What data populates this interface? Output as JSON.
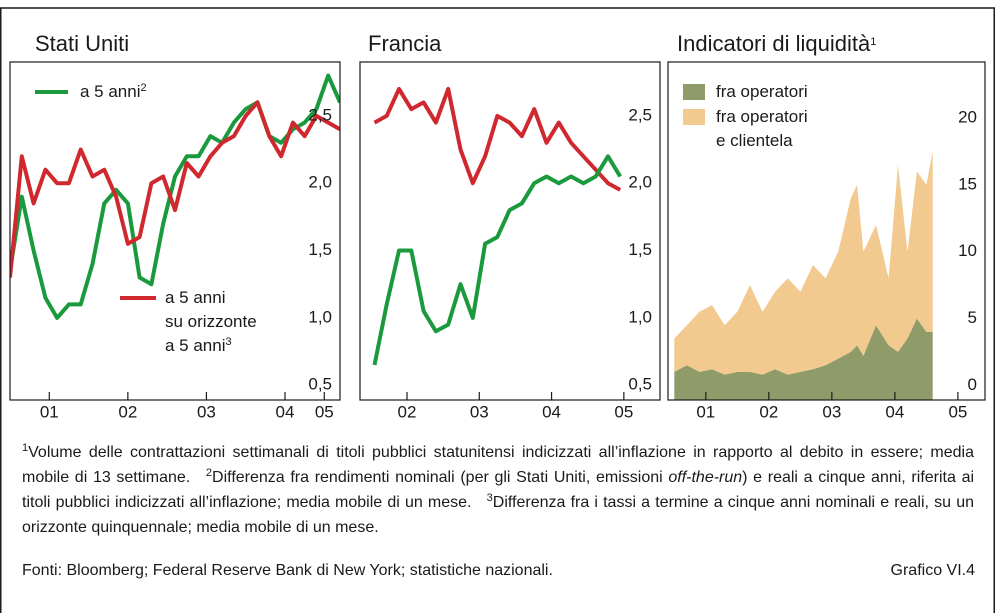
{
  "chart_data": [
    {
      "type": "line",
      "title": "Stati Uniti",
      "x": [
        2001.0,
        2001.15,
        2001.3,
        2001.45,
        2001.6,
        2001.75,
        2001.9,
        2002.05,
        2002.2,
        2002.35,
        2002.5,
        2002.65,
        2002.8,
        2002.95,
        2003.1,
        2003.25,
        2003.4,
        2003.55,
        2003.7,
        2003.85,
        2004.0,
        2004.15,
        2004.3,
        2004.45,
        2004.6,
        2004.75,
        2004.9,
        2005.05,
        2005.2
      ],
      "series": [
        {
          "name": "a 5 anni",
          "note": "2",
          "color": "#1a9a3c",
          "values": [
            1.35,
            1.9,
            1.5,
            1.15,
            1.0,
            1.1,
            1.1,
            1.4,
            1.85,
            1.95,
            1.85,
            1.3,
            1.25,
            1.7,
            2.05,
            2.2,
            2.2,
            2.35,
            2.3,
            2.45,
            2.55,
            2.6,
            2.35,
            2.3,
            2.4,
            2.45,
            2.55,
            2.8,
            2.6
          ]
        },
        {
          "name": "a 5 anni\nsu orizzonte\na 5 anni",
          "note": "3",
          "color": "#d0282f",
          "values": [
            1.3,
            2.2,
            1.85,
            2.1,
            2.0,
            2.0,
            2.25,
            2.05,
            2.1,
            1.9,
            1.55,
            1.6,
            2.0,
            2.05,
            1.8,
            2.15,
            2.05,
            2.2,
            2.3,
            2.35,
            2.5,
            2.6,
            2.35,
            2.2,
            2.45,
            2.35,
            2.5,
            2.45,
            2.4
          ]
        }
      ],
      "xlim": [
        2001.0,
        2005.2
      ],
      "xticks": [
        {
          "value": 2001.5,
          "label": "01"
        },
        {
          "value": 2002.5,
          "label": "02"
        },
        {
          "value": 2003.5,
          "label": "03"
        },
        {
          "value": 2004.5,
          "label": "04"
        },
        {
          "value": 2005.0,
          "label": "05"
        }
      ],
      "ylim": [
        0.39,
        2.9
      ],
      "yticks": [
        {
          "value": 0.5,
          "label": "0,5"
        },
        {
          "value": 1.0,
          "label": "1,0"
        },
        {
          "value": 1.5,
          "label": "1,5"
        },
        {
          "value": 2.0,
          "label": "2,0"
        },
        {
          "value": 2.5,
          "label": "2,5"
        }
      ]
    },
    {
      "type": "line",
      "title": "Francia",
      "x": [
        2001.55,
        2001.72,
        2001.89,
        2002.06,
        2002.23,
        2002.4,
        2002.57,
        2002.74,
        2002.91,
        2003.08,
        2003.25,
        2003.42,
        2003.59,
        2003.76,
        2003.93,
        2004.1,
        2004.27,
        2004.44,
        2004.61,
        2004.78,
        2004.95
      ],
      "series": [
        {
          "color": "#d0282f",
          "values": [
            2.45,
            2.5,
            2.7,
            2.55,
            2.6,
            2.45,
            2.7,
            2.25,
            2.0,
            2.2,
            2.5,
            2.45,
            2.35,
            2.55,
            2.3,
            2.45,
            2.3,
            2.2,
            2.1,
            2.0,
            1.95
          ]
        },
        {
          "color": "#1a9a3c",
          "values": [
            0.65,
            1.1,
            1.5,
            1.5,
            1.05,
            0.9,
            0.95,
            1.25,
            1.0,
            1.55,
            1.6,
            1.8,
            1.85,
            2.0,
            2.05,
            2.0,
            2.05,
            2.0,
            2.05,
            2.2,
            2.05
          ]
        }
      ],
      "xlim": [
        2001.35,
        2005.5
      ],
      "xticks": [
        {
          "value": 2002.0,
          "label": "02"
        },
        {
          "value": 2003.0,
          "label": "03"
        },
        {
          "value": 2004.0,
          "label": "04"
        },
        {
          "value": 2005.0,
          "label": "05"
        }
      ],
      "ylim": [
        0.39,
        2.9
      ],
      "yticks": [
        {
          "value": 0.5,
          "label": "0,5"
        },
        {
          "value": 1.0,
          "label": "1,0"
        },
        {
          "value": 1.5,
          "label": "1,5"
        },
        {
          "value": 2.0,
          "label": "2,0"
        },
        {
          "value": 2.5,
          "label": "2,5"
        }
      ]
    },
    {
      "type": "area",
      "stacked": true,
      "title": "Indicatori di liquidità",
      "title_note": "1",
      "x": [
        2001.0,
        2001.2,
        2001.4,
        2001.6,
        2001.8,
        2002.0,
        2002.2,
        2002.4,
        2002.6,
        2002.8,
        2003.0,
        2003.2,
        2003.4,
        2003.6,
        2003.8,
        2003.9,
        2004.0,
        2004.2,
        2004.4,
        2004.55,
        2004.7,
        2004.85,
        2005.0,
        2005.1
      ],
      "series": [
        {
          "name": "fra operatori",
          "color": "#8f9c6a",
          "values": [
            1.0,
            1.5,
            1.0,
            1.2,
            0.8,
            1.0,
            1.0,
            0.8,
            1.2,
            0.8,
            1.0,
            1.2,
            1.5,
            2.0,
            2.5,
            3.0,
            2.2,
            4.5,
            3.0,
            2.5,
            3.5,
            5.0,
            4.0,
            4.0
          ]
        },
        {
          "name": "fra operatori\ne clientela",
          "color": "#f2c98e",
          "values": [
            2.5,
            3.0,
            4.5,
            4.8,
            3.7,
            4.5,
            6.5,
            4.7,
            5.8,
            7.2,
            6.0,
            7.8,
            6.5,
            8.0,
            11.5,
            12.0,
            7.8,
            7.5,
            5.0,
            14.0,
            6.5,
            11.0,
            11.0,
            13.5
          ]
        }
      ],
      "xlim": [
        2000.9,
        2005.93
      ],
      "xticks": [
        {
          "value": 2001.5,
          "label": "01"
        },
        {
          "value": 2002.5,
          "label": "02"
        },
        {
          "value": 2003.5,
          "label": "03"
        },
        {
          "value": 2004.5,
          "label": "04"
        },
        {
          "value": 2005.5,
          "label": "05"
        }
      ],
      "ylim": [
        -1.1,
        24.2
      ],
      "yticks": [
        0,
        5,
        10,
        15,
        20
      ]
    }
  ],
  "notes": [
    {
      "marker": "1",
      "text": "Volume delle contrattazioni settimanali di titoli pubblici statunitensi indicizzati all’inflazione in rapporto al debito in essere; media mobile di 13 settimane."
    },
    {
      "marker": "2",
      "text": "Differenza fra rendimenti nominali (per gli Stati Uniti, emissioni ",
      "italic": "off-the-run",
      "text_after": ") e reali a cinque anni, riferita ai titoli pubblici indicizzati all’inflazione; media mobile di un mese."
    },
    {
      "marker": "3",
      "text": "Differenza fra i tassi a termine a cinque anni nominali e reali, su un orizzonte quinquennale; media mobile di un mese."
    }
  ],
  "sources": "Fonti: Bloomberg; Federal Reserve Bank di New York; statistiche nazionali.",
  "figure_label": "Grafico VI.4"
}
